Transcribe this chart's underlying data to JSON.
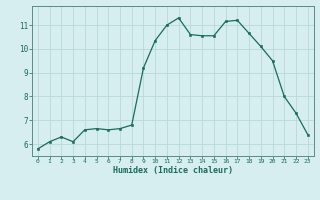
{
  "x": [
    0,
    1,
    2,
    3,
    4,
    5,
    6,
    7,
    8,
    9,
    10,
    11,
    12,
    13,
    14,
    15,
    16,
    17,
    18,
    19,
    20,
    21,
    22,
    23
  ],
  "y": [
    5.8,
    6.1,
    6.3,
    6.1,
    6.6,
    6.65,
    6.6,
    6.65,
    6.8,
    9.2,
    10.35,
    11.0,
    11.3,
    10.6,
    10.55,
    10.55,
    11.15,
    11.2,
    10.65,
    10.1,
    9.5,
    8.0,
    7.3,
    6.4
  ],
  "xlabel": "Humidex (Indice chaleur)",
  "xlim": [
    -0.5,
    23.5
  ],
  "ylim": [
    5.5,
    11.8
  ],
  "yticks": [
    6,
    7,
    8,
    9,
    10,
    11
  ],
  "xticks": [
    0,
    1,
    2,
    3,
    4,
    5,
    6,
    7,
    8,
    9,
    10,
    11,
    12,
    13,
    14,
    15,
    16,
    17,
    18,
    19,
    20,
    21,
    22,
    23
  ],
  "line_color": "#1a6b5a",
  "marker_color": "#1a6b5a",
  "bg_color": "#d6eef0",
  "grid_color": "#b8d8db",
  "axis_color": "#5a8a8a",
  "label_color": "#1a6b5a",
  "tick_color": "#1a6b5a"
}
